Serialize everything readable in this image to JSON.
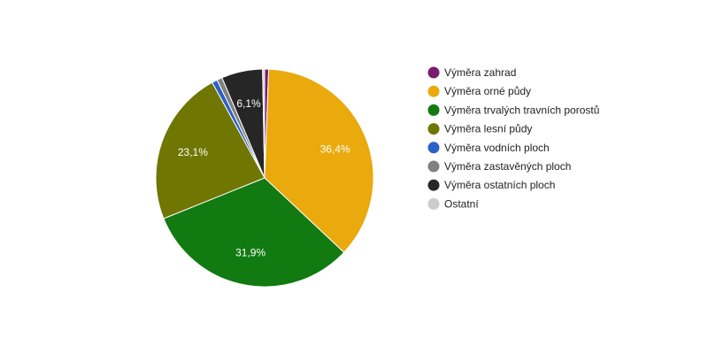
{
  "chart_data": {
    "type": "pie",
    "title": "",
    "start_angle_deg": 0,
    "legend_position": "right",
    "series": [
      {
        "name": "Výměra zahrad",
        "value": 0.6,
        "color": "#7b1b6e",
        "label": ""
      },
      {
        "name": "Výměra orné půdy",
        "value": 36.4,
        "color": "#eaa90c",
        "label": "36,4%"
      },
      {
        "name": "Výměra trvalých travních porostů",
        "value": 31.9,
        "color": "#117a10",
        "label": "31,9%"
      },
      {
        "name": "Výměra lesní půdy",
        "value": 23.1,
        "color": "#6f7602",
        "label": "23,1%"
      },
      {
        "name": "Výměra vodních ploch",
        "value": 0.8,
        "color": "#2b5fc9",
        "label": ""
      },
      {
        "name": "Výměra zastavěných ploch",
        "value": 0.8,
        "color": "#808080",
        "label": ""
      },
      {
        "name": "Výměra ostatních ploch",
        "value": 6.1,
        "color": "#262626",
        "label": "6,1%"
      },
      {
        "name": "Ostatní",
        "value": 0.3,
        "color": "#cccccc",
        "label": ""
      }
    ]
  }
}
